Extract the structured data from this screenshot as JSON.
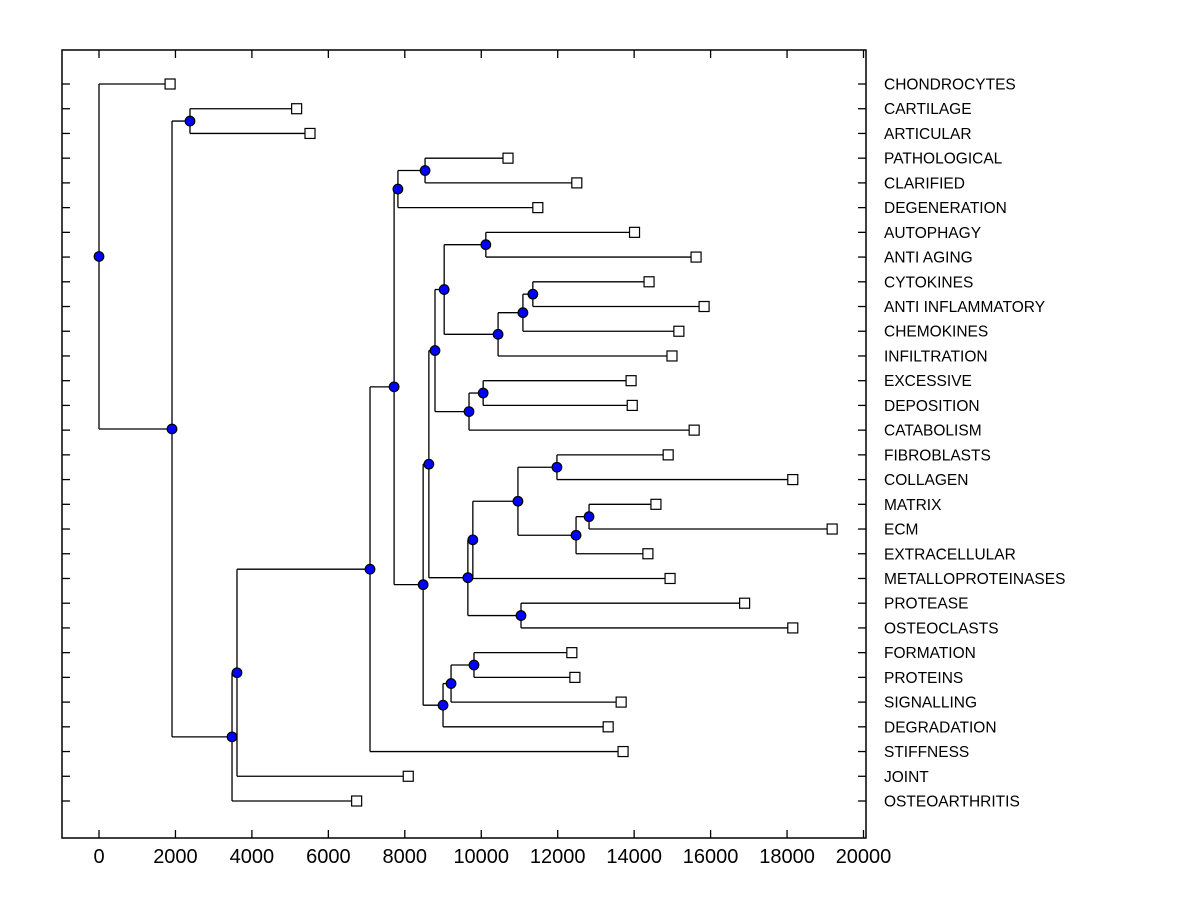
{
  "figure": {
    "background": "#ffffff",
    "axis_color": "#000000",
    "branch_color": "#000000",
    "internal_node_fill": "#0000ff",
    "marker_stroke": "#000000",
    "leaf_marker_fill": "#ffffff"
  },
  "chart_data": {
    "type": "dendrogram",
    "orientation": "horizontal, root at left, leaf labels at right",
    "grid": "off",
    "legend": "none",
    "title": "",
    "xlabel": "",
    "ylabel": "",
    "x_axis": {
      "ticks": [
        0,
        2000,
        4000,
        6000,
        8000,
        10000,
        12000,
        14000,
        16000,
        18000,
        20000
      ],
      "range": [
        -970,
        20050
      ]
    },
    "leaf_labels_top_to_bottom": [
      "CHONDROCYTES",
      "CARTILAGE",
      "ARTICULAR",
      "PATHOLOGICAL",
      "CLARIFIED",
      "DEGENERATION",
      "AUTOPHAGY",
      "ANTI AGING",
      "CYTOKINES",
      "ANTI INFLAMMATORY",
      "CHEMOKINES",
      "INFILTRATION",
      "EXCESSIVE",
      "DEPOSITION",
      "CATABOLISM",
      "FIBROBLASTS",
      "COLLAGEN",
      "MATRIX",
      "ECM",
      "EXTRACELLULAR",
      "METALLOPROTEINASES",
      "PROTEASE",
      "OSTEOCLASTS",
      "FORMATION",
      "PROTEINS",
      "SIGNALLING",
      "DEGRADATION",
      "STIFFNESS",
      "JOINT",
      "OSTEOARTHRITIS"
    ],
    "tree": {
      "d": 0,
      "c": [
        {
          "leaf": "CHONDROCYTES",
          "d": 1860
        },
        {
          "d": 1910,
          "c": [
            {
              "d": 2380,
              "c": [
                {
                  "leaf": "CARTILAGE",
                  "d": 5170
                },
                {
                  "leaf": "ARTICULAR",
                  "d": 5520
                }
              ]
            },
            {
              "d": 3480,
              "c": [
                {
                  "d": 3610,
                  "c": [
                    {
                      "d": 7090,
                      "c": [
                        {
                          "d": 7720,
                          "c": [
                            {
                              "d": 7820,
                              "c": [
                                {
                                  "d": 8530,
                                  "c": [
                                    {
                                      "leaf": "PATHOLOGICAL",
                                      "d": 10700
                                    },
                                    {
                                      "leaf": "CLARIFIED",
                                      "d": 12500
                                    }
                                  ]
                                },
                                {
                                  "leaf": "DEGENERATION",
                                  "d": 11480
                                }
                              ]
                            },
                            {
                              "d": 8480,
                              "c": [
                                {
                                  "d": 8630,
                                  "c": [
                                    {
                                      "d": 8790,
                                      "c": [
                                        {
                                          "d": 9030,
                                          "c": [
                                            {
                                              "d": 10120,
                                              "c": [
                                                {
                                                  "leaf": "AUTOPHAGY",
                                                  "d": 14010
                                                },
                                                {
                                                  "leaf": "ANTI AGING",
                                                  "d": 15620
                                                }
                                              ]
                                            },
                                            {
                                              "d": 10440,
                                              "c": [
                                                {
                                                  "d": 11090,
                                                  "c": [
                                                    {
                                                      "d": 11350,
                                                      "c": [
                                                        {
                                                          "leaf": "CYTOKINES",
                                                          "d": 14390
                                                        },
                                                        {
                                                          "leaf": "ANTI INFLAMMATORY",
                                                          "d": 15830
                                                        }
                                                      ]
                                                    },
                                                    {
                                                      "leaf": "CHEMOKINES",
                                                      "d": 15170
                                                    }
                                                  ]
                                                },
                                                {
                                                  "leaf": "INFILTRATION",
                                                  "d": 14990
                                                }
                                              ]
                                            }
                                          ]
                                        },
                                        {
                                          "d": 9680,
                                          "c": [
                                            {
                                              "d": 10050,
                                              "c": [
                                                {
                                                  "leaf": "EXCESSIVE",
                                                  "d": 13920
                                                },
                                                {
                                                  "leaf": "DEPOSITION",
                                                  "d": 13950
                                                }
                                              ]
                                            },
                                            {
                                              "leaf": "CATABOLISM",
                                              "d": 15570
                                            }
                                          ]
                                        }
                                      ]
                                    },
                                    {
                                      "d": 9650,
                                      "c": [
                                        {
                                          "d": 9780,
                                          "c": [
                                            {
                                              "d": 10960,
                                              "c": [
                                                {
                                                  "d": 11980,
                                                  "c": [
                                                    {
                                                      "leaf": "FIBROBLASTS",
                                                      "d": 14890
                                                    },
                                                    {
                                                      "leaf": "COLLAGEN",
                                                      "d": 18150
                                                    }
                                                  ]
                                                },
                                                {
                                                  "d": 12480,
                                                  "c": [
                                                    {
                                                      "d": 12820,
                                                      "c": [
                                                        {
                                                          "leaf": "MATRIX",
                                                          "d": 14570
                                                        },
                                                        {
                                                          "leaf": "ECM",
                                                          "d": 19180
                                                        }
                                                      ]
                                                    },
                                                    {
                                                      "leaf": "EXTRACELLULAR",
                                                      "d": 14360
                                                    }
                                                  ]
                                                }
                                              ]
                                            },
                                            {
                                              "leaf": "METALLOPROTEINASES",
                                              "d": 14940
                                            }
                                          ]
                                        },
                                        {
                                          "d": 11040,
                                          "c": [
                                            {
                                              "leaf": "PROTEASE",
                                              "d": 16890
                                            },
                                            {
                                              "leaf": "OSTEOCLASTS",
                                              "d": 18150
                                            }
                                          ]
                                        }
                                      ]
                                    }
                                  ]
                                },
                                {
                                  "d": 9000,
                                  "c": [
                                    {
                                      "d": 9210,
                                      "c": [
                                        {
                                          "d": 9810,
                                          "c": [
                                            {
                                              "leaf": "FORMATION",
                                              "d": 12370
                                            },
                                            {
                                              "leaf": "PROTEINS",
                                              "d": 12450
                                            }
                                          ]
                                        },
                                        {
                                          "leaf": "SIGNALLING",
                                          "d": 13660
                                        }
                                      ]
                                    },
                                    {
                                      "leaf": "DEGRADATION",
                                      "d": 13320
                                    }
                                  ]
                                }
                              ]
                            }
                          ]
                        },
                        {
                          "leaf": "STIFFNESS",
                          "d": 13710
                        }
                      ]
                    },
                    {
                      "leaf": "JOINT",
                      "d": 8090
                    }
                  ]
                },
                {
                  "leaf": "OSTEOARTHRITIS",
                  "d": 6740
                }
              ]
            }
          ]
        }
      ]
    }
  }
}
